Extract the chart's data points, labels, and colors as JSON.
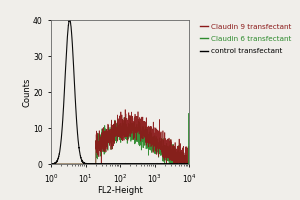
{
  "title": "",
  "xlabel": "FL2-Height",
  "ylabel": "Counts",
  "xlim_log": [
    1,
    10000
  ],
  "ylim": [
    0,
    40
  ],
  "yticks": [
    0,
    10,
    20,
    30,
    40
  ],
  "background_color": "#f0eeea",
  "legend_entries": [
    {
      "label": "Claudin 9 transfectant",
      "color": "#8B1A1A"
    },
    {
      "label": "Claudin 6 transfectant",
      "color": "#2E8B2E"
    },
    {
      "label": "control transfectant",
      "color": "#000000"
    }
  ],
  "seed": 42
}
